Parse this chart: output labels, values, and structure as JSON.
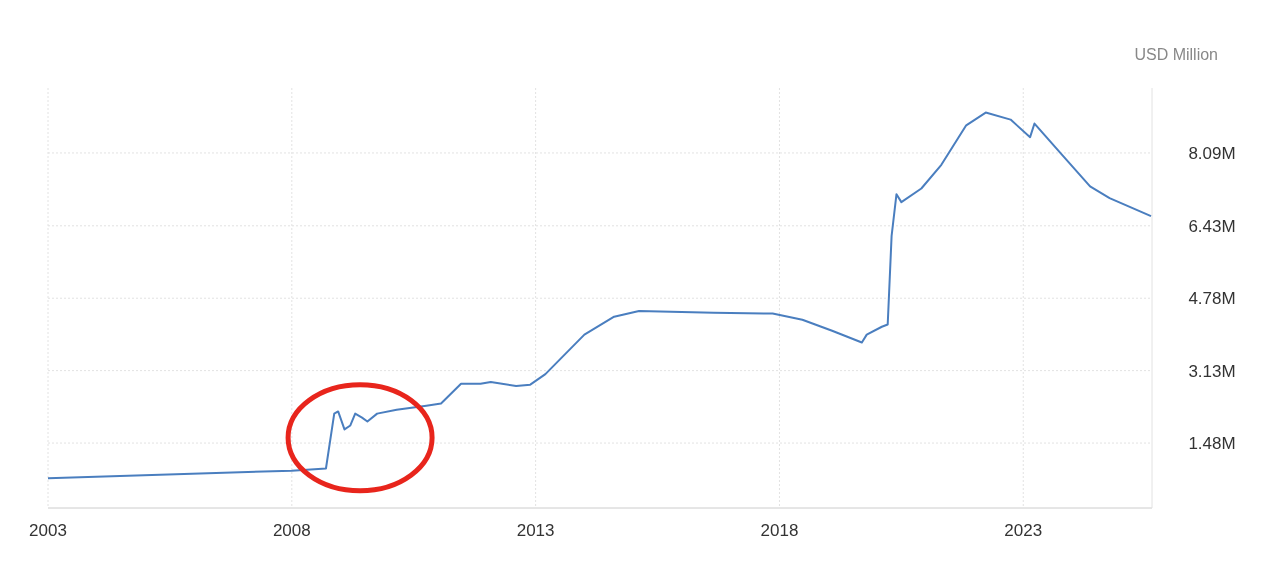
{
  "chart_data": {
    "type": "line",
    "ylabel": "USD Million",
    "x": [
      2003.0,
      2008.0,
      2008.7,
      2008.87,
      2008.95,
      2009.08,
      2009.2,
      2009.3,
      2009.44,
      2009.55,
      2009.75,
      2010.15,
      2010.76,
      2011.06,
      2011.47,
      2011.87,
      2012.08,
      2012.6,
      2012.89,
      2013.2,
      2014.0,
      2014.61,
      2015.12,
      2016.65,
      2017.86,
      2018.47,
      2019.08,
      2019.69,
      2019.79,
      2020.1,
      2020.22,
      2020.3,
      2020.4,
      2020.5,
      2020.91,
      2021.32,
      2021.83,
      2022.23,
      2022.74,
      2023.14,
      2023.23,
      2023.76,
      2024.37,
      2024.77,
      2025.62
    ],
    "series": [
      {
        "color": "#4a7ebf",
        "values": [
          680000,
          850000,
          900000,
          2150000,
          2200000,
          1790000,
          1880000,
          2150000,
          2060000,
          1970000,
          2150000,
          2240000,
          2330000,
          2380000,
          2830000,
          2830000,
          2870000,
          2780000,
          2810000,
          3050000,
          3950000,
          4360000,
          4490000,
          4450000,
          4430000,
          4290000,
          4040000,
          3770000,
          3950000,
          4130000,
          4180000,
          6200000,
          7150000,
          6970000,
          7280000,
          7820000,
          8720000,
          9010000,
          8850000,
          8450000,
          8760000,
          8090000,
          7330000,
          7060000,
          6650000
        ]
      }
    ],
    "xlim": [
      2003,
      2025.64
    ],
    "xticks": [
      2003,
      2008,
      2013,
      2018,
      2023
    ],
    "ylim": [
      0,
      9570000
    ],
    "yticks": [
      {
        "value": 1480000,
        "label": "1.48M"
      },
      {
        "value": 3130000,
        "label": "3.13M"
      },
      {
        "value": 4780000,
        "label": "4.78M"
      },
      {
        "value": 6430000,
        "label": "6.43M"
      },
      {
        "value": 8090000,
        "label": "8.09M"
      }
    ],
    "grid": true,
    "line_style": "solid",
    "marker": "none"
  }
}
